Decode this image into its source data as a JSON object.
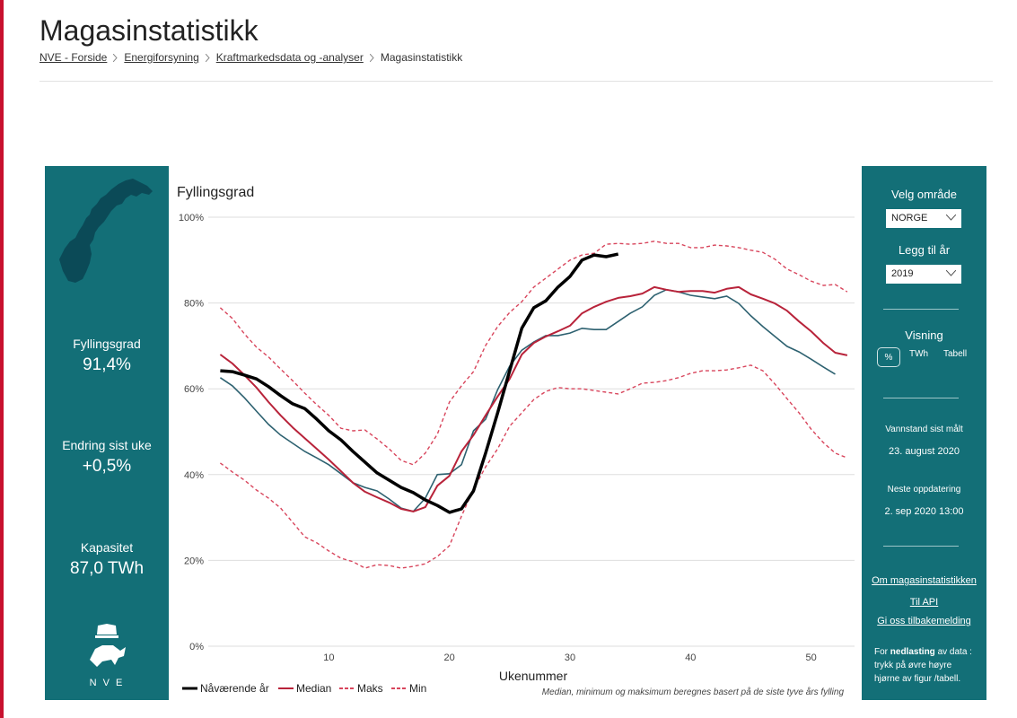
{
  "header": {
    "title": "Magasinstatistikk",
    "breadcrumb": [
      "NVE - Forside",
      "Energiforsyning",
      "Kraftmarkedsdata og -analyser",
      "Magasinstatistikk"
    ]
  },
  "summary": [
    {
      "label": "Fyllingsgrad",
      "value": "91,4%"
    },
    {
      "label": "Endring sist uke",
      "value": "+0,5%"
    },
    {
      "label": "Kapasitet",
      "value": "87,0 TWh"
    }
  ],
  "logo_text": "N V E",
  "chart_data": {
    "type": "line",
    "title": "Fyllingsgrad",
    "x_label": "Ukenummer",
    "note": "Median, minimum og maksimum beregnes basert på de siste tyve års fylling",
    "x": [
      1,
      2,
      3,
      4,
      5,
      6,
      7,
      8,
      9,
      10,
      11,
      12,
      13,
      14,
      15,
      16,
      17,
      18,
      19,
      20,
      21,
      22,
      23,
      24,
      25,
      26,
      27,
      28,
      29,
      30,
      31,
      32,
      33,
      34,
      35,
      36,
      37,
      38,
      39,
      40,
      41,
      42,
      43,
      44,
      45,
      46,
      47,
      48,
      49,
      50,
      51,
      52,
      53
    ],
    "xlim": [
      0,
      53.6
    ],
    "xticks": [
      10,
      20,
      30,
      40,
      50
    ],
    "ylim": [
      0,
      100
    ],
    "yticks": [
      {
        "value": 0,
        "label": "0%"
      },
      {
        "value": 20,
        "label": "20%"
      },
      {
        "value": 40,
        "label": "40%"
      },
      {
        "value": 60,
        "label": "60%"
      },
      {
        "value": 80,
        "label": "80%"
      },
      {
        "value": 100,
        "label": "100%"
      }
    ],
    "grid": true,
    "comparison": {
      "color": "#2d6170",
      "values": [
        62.6,
        60.7,
        57.9,
        54.8,
        51.7,
        49.2,
        47.3,
        45.4,
        43.9,
        42.3,
        40.2,
        38.1,
        37.0,
        36.2,
        34.3,
        32.2,
        31.4,
        34.5,
        40.0,
        40.2,
        42.3,
        50.2,
        52.9,
        59.8,
        65.3,
        69.0,
        70.9,
        72.4,
        72.4,
        73.0,
        74.1,
        73.8,
        73.8,
        75.7,
        77.6,
        79.1,
        81.8,
        83.1,
        82.6,
        81.8,
        81.4,
        81.0,
        81.6,
        79.9,
        77.0,
        74.5,
        72.2,
        69.9,
        68.6,
        66.9,
        65.1,
        63.4,
        null
      ]
    },
    "series": [
      {
        "name": "Nåværende år",
        "color": "#000000",
        "style": "solid",
        "values": [
          64.2,
          64.0,
          63.2,
          62.3,
          60.5,
          58.4,
          56.5,
          55.4,
          52.9,
          50.2,
          48.1,
          45.4,
          42.9,
          40.4,
          38.7,
          37.0,
          35.8,
          34.1,
          32.8,
          31.2,
          32.0,
          36.2,
          45.0,
          54.4,
          64.2,
          74.1,
          78.9,
          80.5,
          83.7,
          86.2,
          90.0,
          91.2,
          90.8,
          91.4,
          null,
          null,
          null,
          null,
          null,
          null,
          null,
          null,
          null,
          null,
          null,
          null,
          null,
          null,
          null,
          null,
          null,
          null,
          null
        ]
      },
      {
        "name": "Median",
        "color": "#b8233a",
        "style": "solid",
        "values": [
          68.0,
          65.9,
          63.2,
          60.3,
          56.9,
          53.8,
          51.0,
          48.5,
          46.0,
          43.5,
          40.8,
          38.1,
          36.0,
          34.7,
          33.5,
          32.0,
          31.4,
          32.4,
          37.4,
          39.7,
          45.4,
          49.2,
          53.8,
          58.2,
          62.3,
          68.0,
          70.7,
          72.2,
          73.4,
          74.7,
          77.6,
          79.1,
          80.3,
          81.2,
          81.6,
          82.2,
          83.7,
          83.1,
          82.6,
          82.8,
          82.8,
          82.4,
          83.3,
          83.7,
          82.0,
          81.0,
          79.9,
          78.2,
          75.7,
          73.4,
          70.7,
          68.4,
          67.8
        ]
      },
      {
        "name": "Maks",
        "color": "#d8455c",
        "style": "dashed",
        "values": [
          78.9,
          76.4,
          72.8,
          69.7,
          67.4,
          64.6,
          61.9,
          59.0,
          56.3,
          53.8,
          50.8,
          50.2,
          50.4,
          48.3,
          46.0,
          43.3,
          42.3,
          45.0,
          49.4,
          56.9,
          60.7,
          64.0,
          70.1,
          74.5,
          77.8,
          80.3,
          83.7,
          85.8,
          87.9,
          90.0,
          91.2,
          91.6,
          93.7,
          93.9,
          93.7,
          93.9,
          94.4,
          93.9,
          93.9,
          92.9,
          92.9,
          93.5,
          93.3,
          92.9,
          92.3,
          91.8,
          90.2,
          87.9,
          86.6,
          85.1,
          84.1,
          84.3,
          82.6
        ]
      },
      {
        "name": "Min",
        "color": "#d8455c",
        "style": "dashed",
        "values": [
          42.7,
          40.6,
          38.7,
          36.4,
          34.5,
          32.2,
          28.9,
          25.5,
          24.1,
          22.2,
          20.5,
          19.7,
          18.2,
          19.0,
          18.8,
          18.2,
          18.6,
          19.2,
          20.9,
          23.4,
          30.3,
          36.6,
          41.8,
          46.0,
          51.3,
          54.4,
          57.5,
          59.4,
          60.3,
          60.0,
          60.0,
          59.6,
          59.2,
          58.8,
          60.0,
          61.3,
          61.5,
          61.9,
          62.6,
          63.6,
          64.2,
          64.2,
          64.4,
          64.9,
          65.5,
          64.2,
          61.1,
          57.7,
          54.4,
          50.6,
          47.5,
          45.0,
          43.9
        ]
      }
    ]
  },
  "controls": {
    "area_label": "Velg område",
    "area_value": "NORGE",
    "year_label": "Legg til år",
    "year_value": "2019",
    "view_label": "Visning",
    "view_options": [
      "%",
      "TWh",
      "Tabell"
    ],
    "measured_label": "Vannstand sist målt",
    "measured_value": "23. august 2020",
    "next_label": "Neste oppdatering",
    "next_value": "2. sep 2020 13:00"
  },
  "links": [
    "Om magasinstatistikken",
    "Til API",
    "Gi oss tilbakemelding"
  ],
  "download_note": [
    "For ",
    "nedlasting",
    " av data : trykk på øvre høyre hjørne av figur /tabell."
  ]
}
